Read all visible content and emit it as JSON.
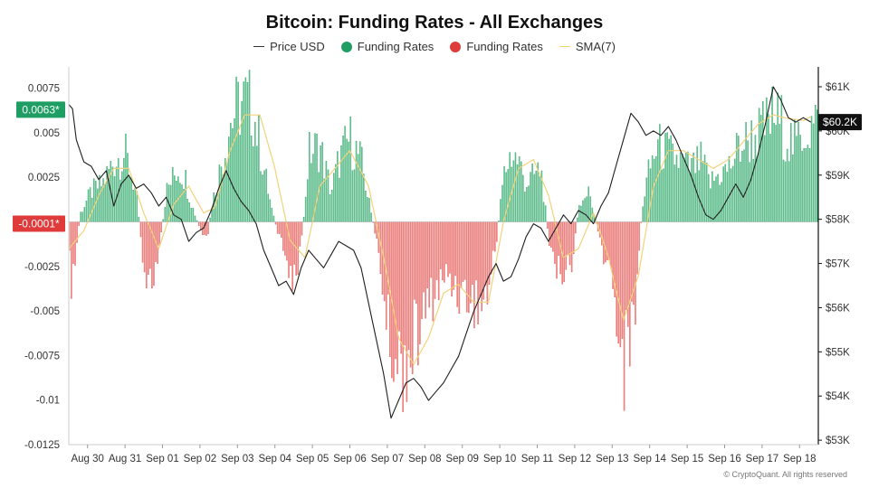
{
  "colors": {
    "price": "#1f1f1f",
    "positive": "#1e9e63",
    "positive_fill": "#7fcf9e",
    "negative": "#e03b3b",
    "negative_fill": "#f0a9a4",
    "sma": "#f2d27a",
    "badge_positive": "#1e9e63",
    "badge_negative": "#e03b3b",
    "badge_price": "#111111"
  },
  "copyright": "© CryptoQuant. All rights reserved",
  "chart_data": {
    "type": "bar",
    "title": "Bitcoin: Funding Rates - All Exchanges",
    "legend": [
      {
        "label": "Price USD",
        "icon": "line",
        "color": "#333333"
      },
      {
        "label": "Funding Rates",
        "icon": "dot",
        "color": "#1e9e63"
      },
      {
        "label": "Funding Rates",
        "icon": "dot",
        "color": "#e03b3b"
      },
      {
        "label": "SMA(7)",
        "icon": "line",
        "color": "#f2d27a"
      }
    ],
    "legend_placement": "top-center",
    "grid": false,
    "x_labels": [
      "Aug 30",
      "Aug 31",
      "Sep 01",
      "Sep 02",
      "Sep 03",
      "Sep 04",
      "Sep 05",
      "Sep 06",
      "Sep 07",
      "Sep 08",
      "Sep 09",
      "Sep 10",
      "Sep 11",
      "Sep 12",
      "Sep 13",
      "Sep 14",
      "Sep 15",
      "Sep 16",
      "Sep 17",
      "Sep 18"
    ],
    "x_range_days": [
      0,
      20
    ],
    "x_label_days": [
      0.5,
      1.5,
      2.5,
      3.5,
      4.5,
      5.5,
      6.5,
      7.5,
      8.5,
      9.5,
      10.5,
      11.5,
      12.5,
      13.5,
      14.5,
      15.5,
      16.5,
      17.5,
      18.5,
      19.5
    ],
    "left_axis": {
      "ticks": [
        "0.0075",
        "0.005",
        "0.0025",
        "-0.0025",
        "-0.005",
        "-0.0075",
        "-0.01",
        "-0.0125"
      ],
      "tick_values": [
        0.0075,
        0.005,
        0.0025,
        -0.0025,
        -0.005,
        -0.0075,
        -0.01,
        -0.0125
      ],
      "range": [
        -0.0125,
        0.0087
      ]
    },
    "right_axis": {
      "ticks": [
        "$61K",
        "$60K",
        "$59K",
        "$58K",
        "$57K",
        "$56K",
        "$55K",
        "$54K",
        "$53K"
      ],
      "tick_values": [
        61000,
        60000,
        59000,
        58000,
        57000,
        56000,
        55000,
        54000,
        53000
      ],
      "range": [
        52900,
        61450
      ]
    },
    "badges": {
      "funding_positive": {
        "label": "0.0063*",
        "value": 0.0063
      },
      "funding_negative": {
        "label": "-0.0001*",
        "value": -0.0001
      },
      "price": {
        "label": "$60.2K",
        "value": 60200
      }
    },
    "funding_anchors": [
      [
        0.0,
        -0.0025
      ],
      [
        0.1,
        -0.0045
      ],
      [
        0.3,
        0.0005
      ],
      [
        0.6,
        0.002
      ],
      [
        0.9,
        0.0025
      ],
      [
        1.2,
        0.004
      ],
      [
        1.5,
        0.0045
      ],
      [
        1.8,
        0.002
      ],
      [
        2.0,
        -0.003
      ],
      [
        2.2,
        -0.004
      ],
      [
        2.4,
        -0.0025
      ],
      [
        2.6,
        0.002
      ],
      [
        2.9,
        0.0035
      ],
      [
        3.1,
        0.003
      ],
      [
        3.3,
        0.001
      ],
      [
        3.5,
        -0.0005
      ],
      [
        3.7,
        -0.0015
      ],
      [
        3.8,
        0.001
      ],
      [
        4.0,
        0.003
      ],
      [
        4.3,
        0.0065
      ],
      [
        4.5,
        0.0075
      ],
      [
        4.7,
        0.008
      ],
      [
        4.9,
        0.0075
      ],
      [
        5.1,
        0.005
      ],
      [
        5.4,
        0.001
      ],
      [
        5.6,
        -0.001
      ],
      [
        5.8,
        -0.0025
      ],
      [
        6.0,
        -0.0035
      ],
      [
        6.2,
        -0.002
      ],
      [
        6.4,
        0.0045
      ],
      [
        6.7,
        0.005
      ],
      [
        6.9,
        0.003
      ],
      [
        7.0,
        0.002
      ],
      [
        7.2,
        0.004
      ],
      [
        7.5,
        0.0055
      ],
      [
        7.8,
        0.004
      ],
      [
        8.1,
        0.0002
      ],
      [
        8.3,
        -0.0025
      ],
      [
        8.5,
        -0.007
      ],
      [
        8.7,
        -0.009
      ],
      [
        8.9,
        -0.0095
      ],
      [
        9.1,
        -0.0085
      ],
      [
        9.3,
        -0.0075
      ],
      [
        9.5,
        -0.006
      ],
      [
        9.8,
        -0.0045
      ],
      [
        10.1,
        -0.0035
      ],
      [
        10.4,
        -0.0045
      ],
      [
        10.7,
        -0.005
      ],
      [
        11.0,
        -0.0055
      ],
      [
        11.2,
        -0.0045
      ],
      [
        11.4,
        -0.0015
      ],
      [
        11.6,
        0.003
      ],
      [
        11.8,
        0.0045
      ],
      [
        12.0,
        0.004
      ],
      [
        12.2,
        0.0025
      ],
      [
        12.4,
        0.003
      ],
      [
        12.6,
        0.0035
      ],
      [
        12.8,
        -0.001
      ],
      [
        13.0,
        -0.0035
      ],
      [
        13.2,
        -0.003
      ],
      [
        13.4,
        -0.0035
      ],
      [
        13.6,
        0.001
      ],
      [
        13.9,
        0.002
      ],
      [
        14.1,
        -0.0005
      ],
      [
        14.3,
        -0.0025
      ],
      [
        14.5,
        -0.0035
      ],
      [
        14.8,
        -0.0095
      ],
      [
        15.1,
        -0.006
      ],
      [
        15.3,
        0.001
      ],
      [
        15.5,
        0.0035
      ],
      [
        15.7,
        0.005
      ],
      [
        16.0,
        0.0045
      ],
      [
        16.3,
        0.004
      ],
      [
        16.6,
        0.0035
      ],
      [
        16.9,
        0.004
      ],
      [
        17.1,
        0.0025
      ],
      [
        17.3,
        0.003
      ],
      [
        17.6,
        0.0035
      ],
      [
        17.9,
        0.005
      ],
      [
        18.2,
        0.0055
      ],
      [
        18.5,
        0.006
      ],
      [
        18.8,
        0.007
      ],
      [
        19.0,
        0.0065
      ],
      [
        19.2,
        0.0055
      ],
      [
        19.4,
        0.005
      ],
      [
        19.6,
        0.006
      ],
      [
        19.8,
        0.0063
      ]
    ],
    "sma7_anchors": [
      [
        0.0,
        -0.0015
      ],
      [
        0.4,
        -0.0005
      ],
      [
        0.8,
        0.0015
      ],
      [
        1.2,
        0.003
      ],
      [
        1.6,
        0.003
      ],
      [
        2.0,
        0.0005
      ],
      [
        2.4,
        -0.0015
      ],
      [
        2.8,
        0.001
      ],
      [
        3.2,
        0.002
      ],
      [
        3.6,
        0.0005
      ],
      [
        3.9,
        0.0008
      ],
      [
        4.3,
        0.004
      ],
      [
        4.7,
        0.006
      ],
      [
        5.1,
        0.006
      ],
      [
        5.5,
        0.003
      ],
      [
        5.9,
        -0.001
      ],
      [
        6.3,
        -0.002
      ],
      [
        6.7,
        0.002
      ],
      [
        7.1,
        0.003
      ],
      [
        7.5,
        0.004
      ],
      [
        8.0,
        0.002
      ],
      [
        8.4,
        -0.002
      ],
      [
        8.8,
        -0.0065
      ],
      [
        9.2,
        -0.008
      ],
      [
        9.6,
        -0.0065
      ],
      [
        10.0,
        -0.004
      ],
      [
        10.4,
        -0.0035
      ],
      [
        10.8,
        -0.0045
      ],
      [
        11.2,
        -0.0045
      ],
      [
        11.6,
        0.0
      ],
      [
        12.0,
        0.003
      ],
      [
        12.4,
        0.0035
      ],
      [
        12.8,
        0.0015
      ],
      [
        13.2,
        -0.002
      ],
      [
        13.6,
        -0.0015
      ],
      [
        14.0,
        0.0005
      ],
      [
        14.4,
        -0.002
      ],
      [
        14.8,
        -0.0055
      ],
      [
        15.2,
        -0.003
      ],
      [
        15.6,
        0.002
      ],
      [
        16.0,
        0.004
      ],
      [
        16.4,
        0.004
      ],
      [
        16.8,
        0.0035
      ],
      [
        17.2,
        0.003
      ],
      [
        17.6,
        0.0035
      ],
      [
        18.0,
        0.0045
      ],
      [
        18.4,
        0.0055
      ],
      [
        18.8,
        0.006
      ],
      [
        19.2,
        0.0058
      ],
      [
        19.6,
        0.0057
      ],
      [
        19.9,
        0.006
      ]
    ],
    "price_points": [
      [
        0.0,
        60600
      ],
      [
        0.1,
        60500
      ],
      [
        0.2,
        59800
      ],
      [
        0.4,
        59300
      ],
      [
        0.6,
        59200
      ],
      [
        0.8,
        58900
      ],
      [
        1.0,
        59100
      ],
      [
        1.2,
        58300
      ],
      [
        1.4,
        58800
      ],
      [
        1.6,
        59000
      ],
      [
        1.8,
        58700
      ],
      [
        2.0,
        58800
      ],
      [
        2.2,
        58600
      ],
      [
        2.4,
        58300
      ],
      [
        2.6,
        58500
      ],
      [
        2.8,
        58100
      ],
      [
        3.0,
        58000
      ],
      [
        3.2,
        57500
      ],
      [
        3.4,
        57700
      ],
      [
        3.6,
        57800
      ],
      [
        3.8,
        58200
      ],
      [
        4.0,
        58700
      ],
      [
        4.2,
        59100
      ],
      [
        4.4,
        58700
      ],
      [
        4.6,
        58400
      ],
      [
        4.8,
        58200
      ],
      [
        5.0,
        57900
      ],
      [
        5.2,
        57300
      ],
      [
        5.4,
        56900
      ],
      [
        5.6,
        56500
      ],
      [
        5.8,
        56600
      ],
      [
        6.0,
        56300
      ],
      [
        6.2,
        56900
      ],
      [
        6.4,
        57300
      ],
      [
        6.6,
        57100
      ],
      [
        6.8,
        56900
      ],
      [
        7.0,
        57200
      ],
      [
        7.2,
        57500
      ],
      [
        7.4,
        57400
      ],
      [
        7.6,
        57300
      ],
      [
        7.8,
        56900
      ],
      [
        8.0,
        56100
      ],
      [
        8.2,
        55300
      ],
      [
        8.4,
        54500
      ],
      [
        8.6,
        53500
      ],
      [
        8.8,
        53900
      ],
      [
        9.0,
        54300
      ],
      [
        9.2,
        54400
      ],
      [
        9.4,
        54200
      ],
      [
        9.6,
        53900
      ],
      [
        9.8,
        54100
      ],
      [
        10.0,
        54300
      ],
      [
        10.2,
        54600
      ],
      [
        10.4,
        54900
      ],
      [
        10.6,
        55400
      ],
      [
        10.8,
        55900
      ],
      [
        11.0,
        56300
      ],
      [
        11.2,
        56700
      ],
      [
        11.4,
        57000
      ],
      [
        11.6,
        56600
      ],
      [
        11.8,
        56700
      ],
      [
        12.0,
        57100
      ],
      [
        12.2,
        57600
      ],
      [
        12.4,
        57900
      ],
      [
        12.6,
        57800
      ],
      [
        12.8,
        57500
      ],
      [
        13.0,
        57800
      ],
      [
        13.2,
        58100
      ],
      [
        13.4,
        57900
      ],
      [
        13.6,
        58200
      ],
      [
        13.8,
        58100
      ],
      [
        14.0,
        57900
      ],
      [
        14.2,
        58300
      ],
      [
        14.4,
        58600
      ],
      [
        14.6,
        59200
      ],
      [
        14.8,
        59800
      ],
      [
        15.0,
        60400
      ],
      [
        15.2,
        60200
      ],
      [
        15.4,
        59900
      ],
      [
        15.6,
        60000
      ],
      [
        15.8,
        59900
      ],
      [
        16.0,
        60100
      ],
      [
        16.2,
        59800
      ],
      [
        16.4,
        59400
      ],
      [
        16.6,
        59000
      ],
      [
        16.8,
        58500
      ],
      [
        17.0,
        58100
      ],
      [
        17.2,
        58000
      ],
      [
        17.4,
        58200
      ],
      [
        17.6,
        58500
      ],
      [
        17.8,
        58800
      ],
      [
        18.0,
        58500
      ],
      [
        18.2,
        58900
      ],
      [
        18.4,
        59500
      ],
      [
        18.6,
        60200
      ],
      [
        18.8,
        61000
      ],
      [
        19.0,
        60700
      ],
      [
        19.2,
        60300
      ],
      [
        19.4,
        60200
      ],
      [
        19.6,
        60300
      ],
      [
        19.8,
        60200
      ]
    ]
  }
}
